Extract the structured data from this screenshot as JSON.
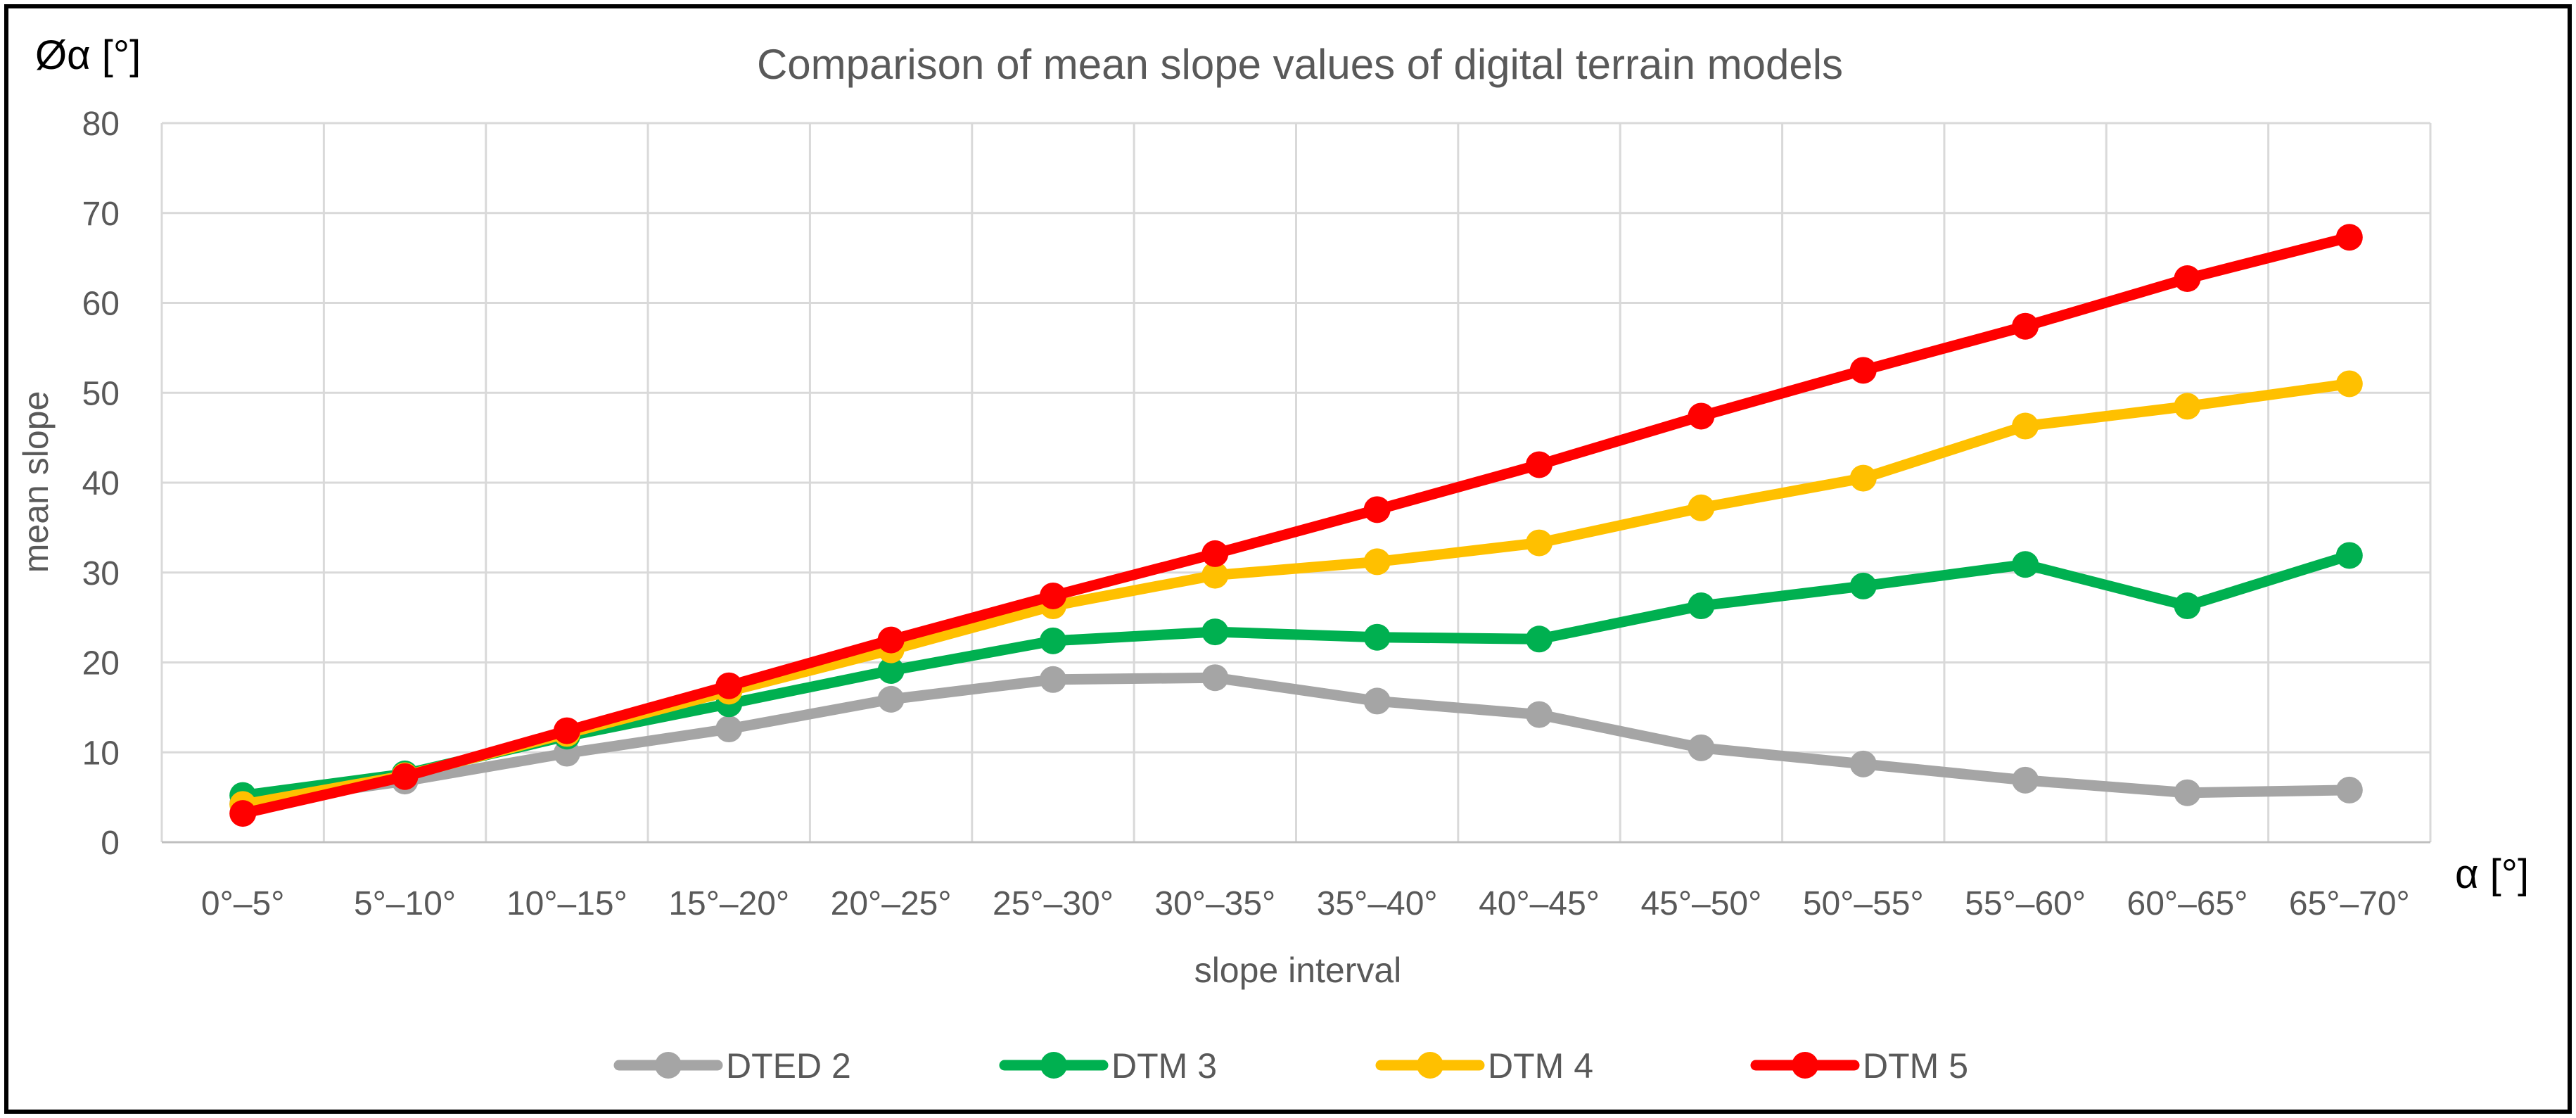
{
  "chart_data": {
    "type": "line",
    "title": "Comparison of mean slope values of digital terrain models",
    "xlabel": "slope interval",
    "ylabel": "mean slope",
    "y_unit_label": "Øα [°]",
    "x_unit_label": "α [°]",
    "ylim": [
      0,
      80
    ],
    "yticks": [
      0,
      10,
      20,
      30,
      40,
      50,
      60,
      70,
      80
    ],
    "grid": true,
    "legend_position": "bottom",
    "categories": [
      "0°–5°",
      "5°–10°",
      "10°–15°",
      "15°–20°",
      "20°–25°",
      "25°–30°",
      "30°–35°",
      "35°–40°",
      "40°–45°",
      "45°–50°",
      "50°–55°",
      "55°–60°",
      "60°–65°",
      "65°–70°"
    ],
    "series": [
      {
        "name": "DTED 2",
        "color": "#A5A5A5",
        "values": [
          4.3,
          6.8,
          9.9,
          12.6,
          15.9,
          18.1,
          18.3,
          15.7,
          14.2,
          10.5,
          8.7,
          6.9,
          5.5,
          5.8
        ]
      },
      {
        "name": "DTM 3",
        "color": "#00B050",
        "values": [
          5.2,
          7.6,
          11.8,
          15.4,
          19.1,
          22.4,
          23.4,
          22.8,
          22.6,
          26.3,
          28.5,
          30.9,
          26.3,
          31.9
        ]
      },
      {
        "name": "DTM 4",
        "color": "#FFC000",
        "values": [
          4.2,
          7.4,
          12.1,
          16.8,
          21.4,
          26.3,
          29.7,
          31.2,
          33.3,
          37.2,
          40.5,
          46.3,
          48.5,
          51.0
        ]
      },
      {
        "name": "DTM 5",
        "color": "#FF0000",
        "values": [
          3.2,
          7.3,
          12.4,
          17.4,
          22.5,
          27.4,
          32.1,
          37.0,
          42.0,
          47.4,
          52.5,
          57.4,
          62.7,
          67.3
        ]
      }
    ]
  }
}
